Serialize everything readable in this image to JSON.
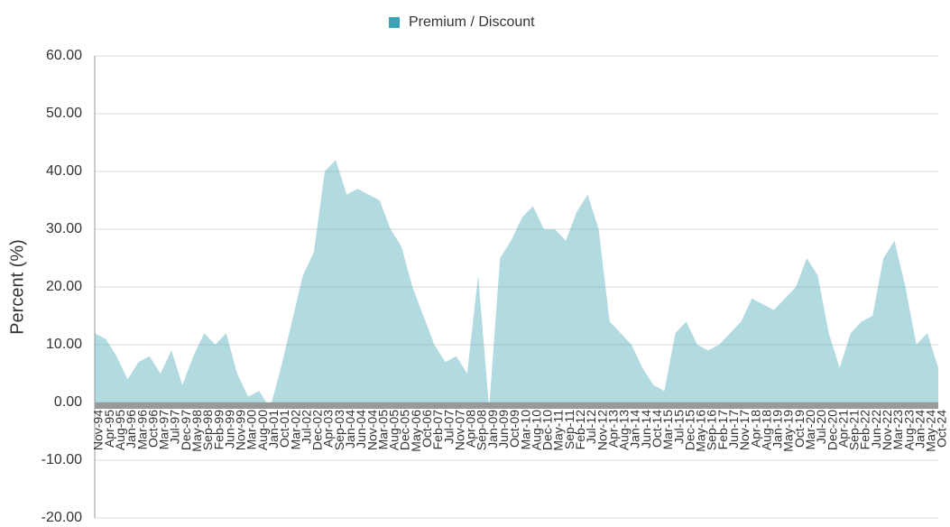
{
  "chart_data": {
    "type": "area",
    "ylabel": "Percent (%)",
    "categories": [
      "Nov-94",
      "Apr-95",
      "Aug-95",
      "Jan-96",
      "Mar-96",
      "Oct-96",
      "Mar-97",
      "Jul-97",
      "Dec-97",
      "May-98",
      "Sep-98",
      "Feb-99",
      "Jun-99",
      "Nov-99",
      "Mar-00",
      "Aug-00",
      "Jan-01",
      "Oct-01",
      "Mar-02",
      "Jul-02",
      "Dec-02",
      "Apr-03",
      "Sep-03",
      "Jan-04",
      "Jun-04",
      "Nov-04",
      "Mar-05",
      "Aug-05",
      "Dec-05",
      "May-06",
      "Oct-06",
      "Feb-07",
      "Jul-07",
      "Nov-07",
      "Apr-08",
      "Sep-08",
      "Jan-09",
      "Jun-09",
      "Oct-09",
      "Mar-10",
      "Aug-10",
      "Dec-10",
      "May-11",
      "Sep-11",
      "Feb-12",
      "Jul-12",
      "Nov-12",
      "Apr-13",
      "Aug-13",
      "Jan-14",
      "Jun-14",
      "Oct-14",
      "Mar-15",
      "Jul-15",
      "Dec-15",
      "May-16",
      "Sep-16",
      "Feb-17",
      "Jun-17",
      "Nov-17",
      "Apr-18",
      "Aug-18",
      "Jan-19",
      "May-19",
      "Oct-19",
      "Mar-20",
      "Jul-20",
      "Dec-20",
      "Apr-21",
      "Sep-21",
      "Feb-22",
      "Jun-22",
      "Nov-22",
      "Mar-23",
      "Aug-23",
      "Jan-24",
      "May-24",
      "Oct-24"
    ],
    "series": [
      {
        "name": "Premium / Discount",
        "color": "#3ba3b3",
        "values": [
          12,
          11,
          8,
          4,
          7,
          8,
          5,
          9,
          3,
          8,
          12,
          10,
          12,
          5,
          1,
          2,
          -1,
          6,
          14,
          22,
          26,
          40,
          42,
          36,
          37,
          36,
          35,
          30,
          27,
          20,
          15,
          10,
          7,
          8,
          5,
          22,
          -1,
          25,
          28,
          32,
          34,
          30,
          30,
          28,
          33,
          36,
          30,
          14,
          12,
          10,
          6,
          3,
          2,
          12,
          14,
          10,
          9,
          10,
          12,
          14,
          18,
          17,
          16,
          18,
          20,
          25,
          22,
          12,
          6,
          12,
          14,
          15,
          25,
          28,
          20,
          10,
          12,
          6
        ]
      }
    ],
    "ylim": [
      -20,
      60
    ],
    "yticks": [
      {
        "value": -20,
        "label": "-20.00"
      },
      {
        "value": -10,
        "label": "-10.00"
      },
      {
        "value": 0,
        "label": "0.00"
      },
      {
        "value": 10,
        "label": "10.00"
      },
      {
        "value": 20,
        "label": "20.00"
      },
      {
        "value": 30,
        "label": "30.00"
      },
      {
        "value": 40,
        "label": "40.00"
      },
      {
        "value": 50,
        "label": "50.00"
      },
      {
        "value": 60,
        "label": "60.00"
      }
    ],
    "grid": true,
    "legend": "top"
  }
}
